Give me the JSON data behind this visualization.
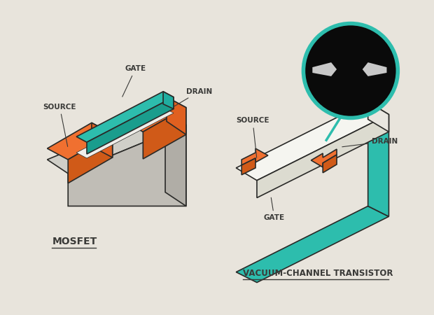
{
  "bg_color": "#e8e4dc",
  "orange": "#F07030",
  "teal": "#2DBDAD",
  "gray_light": "#d0cfc8",
  "gray_mid": "#b8b5ae",
  "white_top": "#f5f5f0",
  "white_side": "#dcdbd5",
  "dark_line": "#2a2a28",
  "label_color": "#3a3a38",
  "title_color": "#3a3a38",
  "mosfet_label": "MOSFET",
  "vct_label": "VACUUM-CHANNEL TRANSISTOR",
  "source_label": "SOURCE",
  "gate_label": "GATE",
  "drain_label": "DRAIN"
}
